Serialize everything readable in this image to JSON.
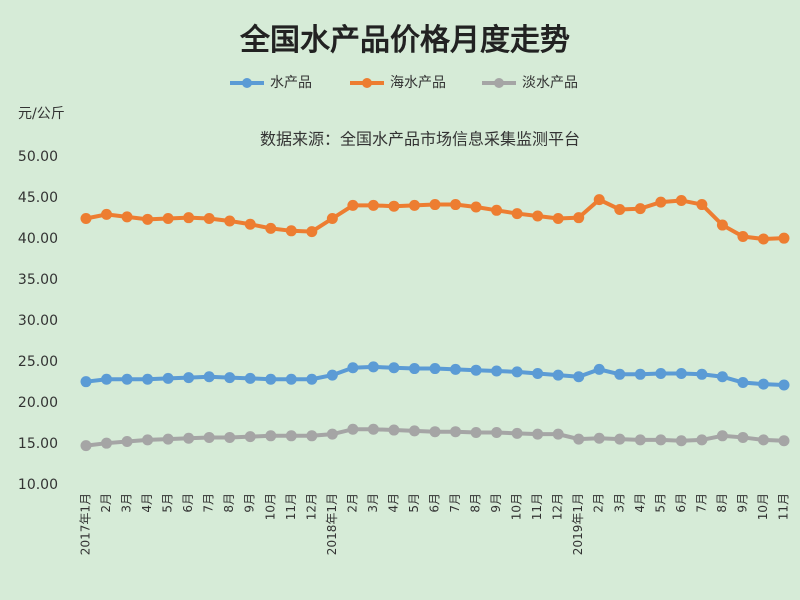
{
  "chart_data": {
    "type": "line",
    "title": "全国水产品价格月度走势",
    "subtitle": "数据来源：全国水产品市场信息采集监测平台",
    "y_label": "元/公斤",
    "categories": [
      "2017年1月",
      "2月",
      "3月",
      "4月",
      "5月",
      "6月",
      "7月",
      "8月",
      "9月",
      "10月",
      "11月",
      "12月",
      "2018年1月",
      "2月",
      "3月",
      "4月",
      "5月",
      "6月",
      "7月",
      "8月",
      "9月",
      "10月",
      "11月",
      "12月",
      "2019年1月",
      "2月",
      "3月",
      "4月",
      "5月",
      "6月",
      "7月",
      "8月",
      "9月",
      "10月",
      "11月"
    ],
    "series": [
      {
        "name": "水产品",
        "color": "#5b9bd5",
        "values": [
          22.6,
          22.9,
          22.9,
          22.9,
          23.0,
          23.1,
          23.2,
          23.1,
          23.0,
          22.9,
          22.9,
          22.9,
          23.4,
          24.3,
          24.4,
          24.3,
          24.2,
          24.2,
          24.1,
          24.0,
          23.9,
          23.8,
          23.6,
          23.4,
          23.2,
          24.1,
          23.5,
          23.5,
          23.6,
          23.6,
          23.5,
          23.2,
          22.5,
          22.3,
          22.2
        ]
      },
      {
        "name": "海水产品",
        "color": "#ed7d31",
        "values": [
          42.5,
          43.0,
          42.7,
          42.4,
          42.5,
          42.6,
          42.5,
          42.2,
          41.8,
          41.3,
          41.0,
          40.9,
          42.5,
          44.1,
          44.1,
          44.0,
          44.1,
          44.2,
          44.2,
          43.9,
          43.5,
          43.1,
          42.8,
          42.5,
          42.6,
          44.8,
          43.6,
          43.7,
          44.5,
          44.7,
          44.2,
          41.7,
          40.3,
          40.0,
          40.1
        ]
      },
      {
        "name": "淡水产品",
        "color": "#a5a5a5",
        "values": [
          14.8,
          15.1,
          15.3,
          15.5,
          15.6,
          15.7,
          15.8,
          15.8,
          15.9,
          16.0,
          16.0,
          16.0,
          16.2,
          16.8,
          16.8,
          16.7,
          16.6,
          16.5,
          16.5,
          16.4,
          16.4,
          16.3,
          16.2,
          16.2,
          15.6,
          15.7,
          15.6,
          15.5,
          15.5,
          15.4,
          15.5,
          16.0,
          15.8,
          15.5,
          15.4
        ]
      }
    ],
    "ylim": [
      10,
      50
    ],
    "yticks": [
      {
        "value": 10,
        "label": "10.00"
      },
      {
        "value": 15,
        "label": "15.00"
      },
      {
        "value": 20,
        "label": "20.00"
      },
      {
        "value": 25,
        "label": "25.00"
      },
      {
        "value": 30,
        "label": "30.00"
      },
      {
        "value": 35,
        "label": "35.00"
      },
      {
        "value": 40,
        "label": "40.00"
      },
      {
        "value": 45,
        "label": "45.00"
      },
      {
        "value": 50,
        "label": "50.00"
      }
    ],
    "legend": "top",
    "grid": false
  }
}
